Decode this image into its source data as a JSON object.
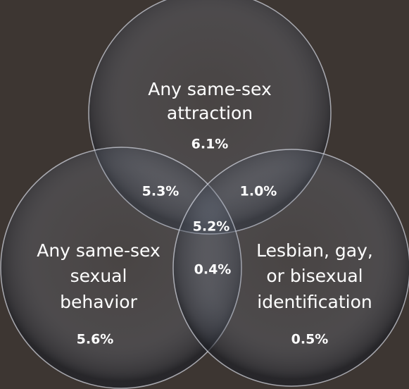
{
  "sets": [
    {
      "label_lines": [
        "Any same-sex",
        "attraction"
      ],
      "value": "6.1%"
    },
    {
      "label_lines": [
        "Any same-sex",
        "sexual",
        "behavior"
      ],
      "value": "5.6%"
    },
    {
      "label_lines": [
        "Lesbian, gay,",
        "or bisexual",
        "identification"
      ],
      "value": "0.5%"
    }
  ],
  "overlaps": {
    "attraction_behavior": "5.3%",
    "attraction_identification": "1.0%",
    "all_three": "5.2%",
    "behavior_identification": "0.4%"
  }
}
